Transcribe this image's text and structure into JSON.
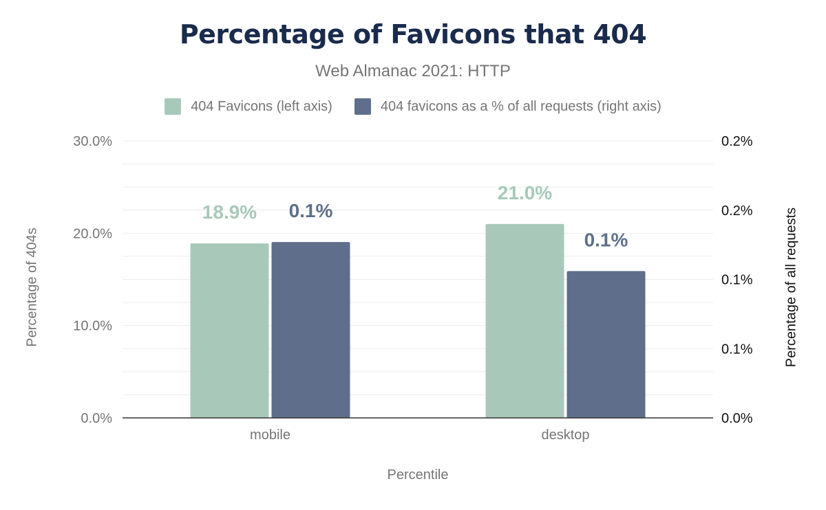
{
  "chart_data": {
    "type": "bar",
    "title": "Percentage of Favicons that 404",
    "subtitle": "Web Almanac 2021: HTTP",
    "categories": [
      "mobile",
      "desktop"
    ],
    "series": [
      {
        "name": "404 Favicons (left axis)",
        "axis": "left",
        "color": "#a8c9b9",
        "values": [
          18.9,
          21.0
        ],
        "labels": [
          "18.9%",
          "21.0%"
        ]
      },
      {
        "name": "404 favicons as a % of all requests (right axis)",
        "axis": "right",
        "color": "#5f6f8b",
        "values": [
          0.127,
          0.106
        ],
        "labels": [
          "0.1%",
          "0.1%"
        ]
      }
    ],
    "xlabel": "Percentile",
    "ylabel_left": "Percentage of 404s",
    "ylabel_right": "Percentage of all requests",
    "ylim_left": [
      0,
      30
    ],
    "ylim_right": [
      0,
      0.2
    ],
    "yticks_left": [
      "0.0%",
      "10.0%",
      "20.0%",
      "30.0%"
    ],
    "yticks_right": [
      "0.0%",
      "0.1%",
      "0.1%",
      "0.2%",
      "0.2%"
    ],
    "grid": true,
    "legend_position": "top-center"
  }
}
